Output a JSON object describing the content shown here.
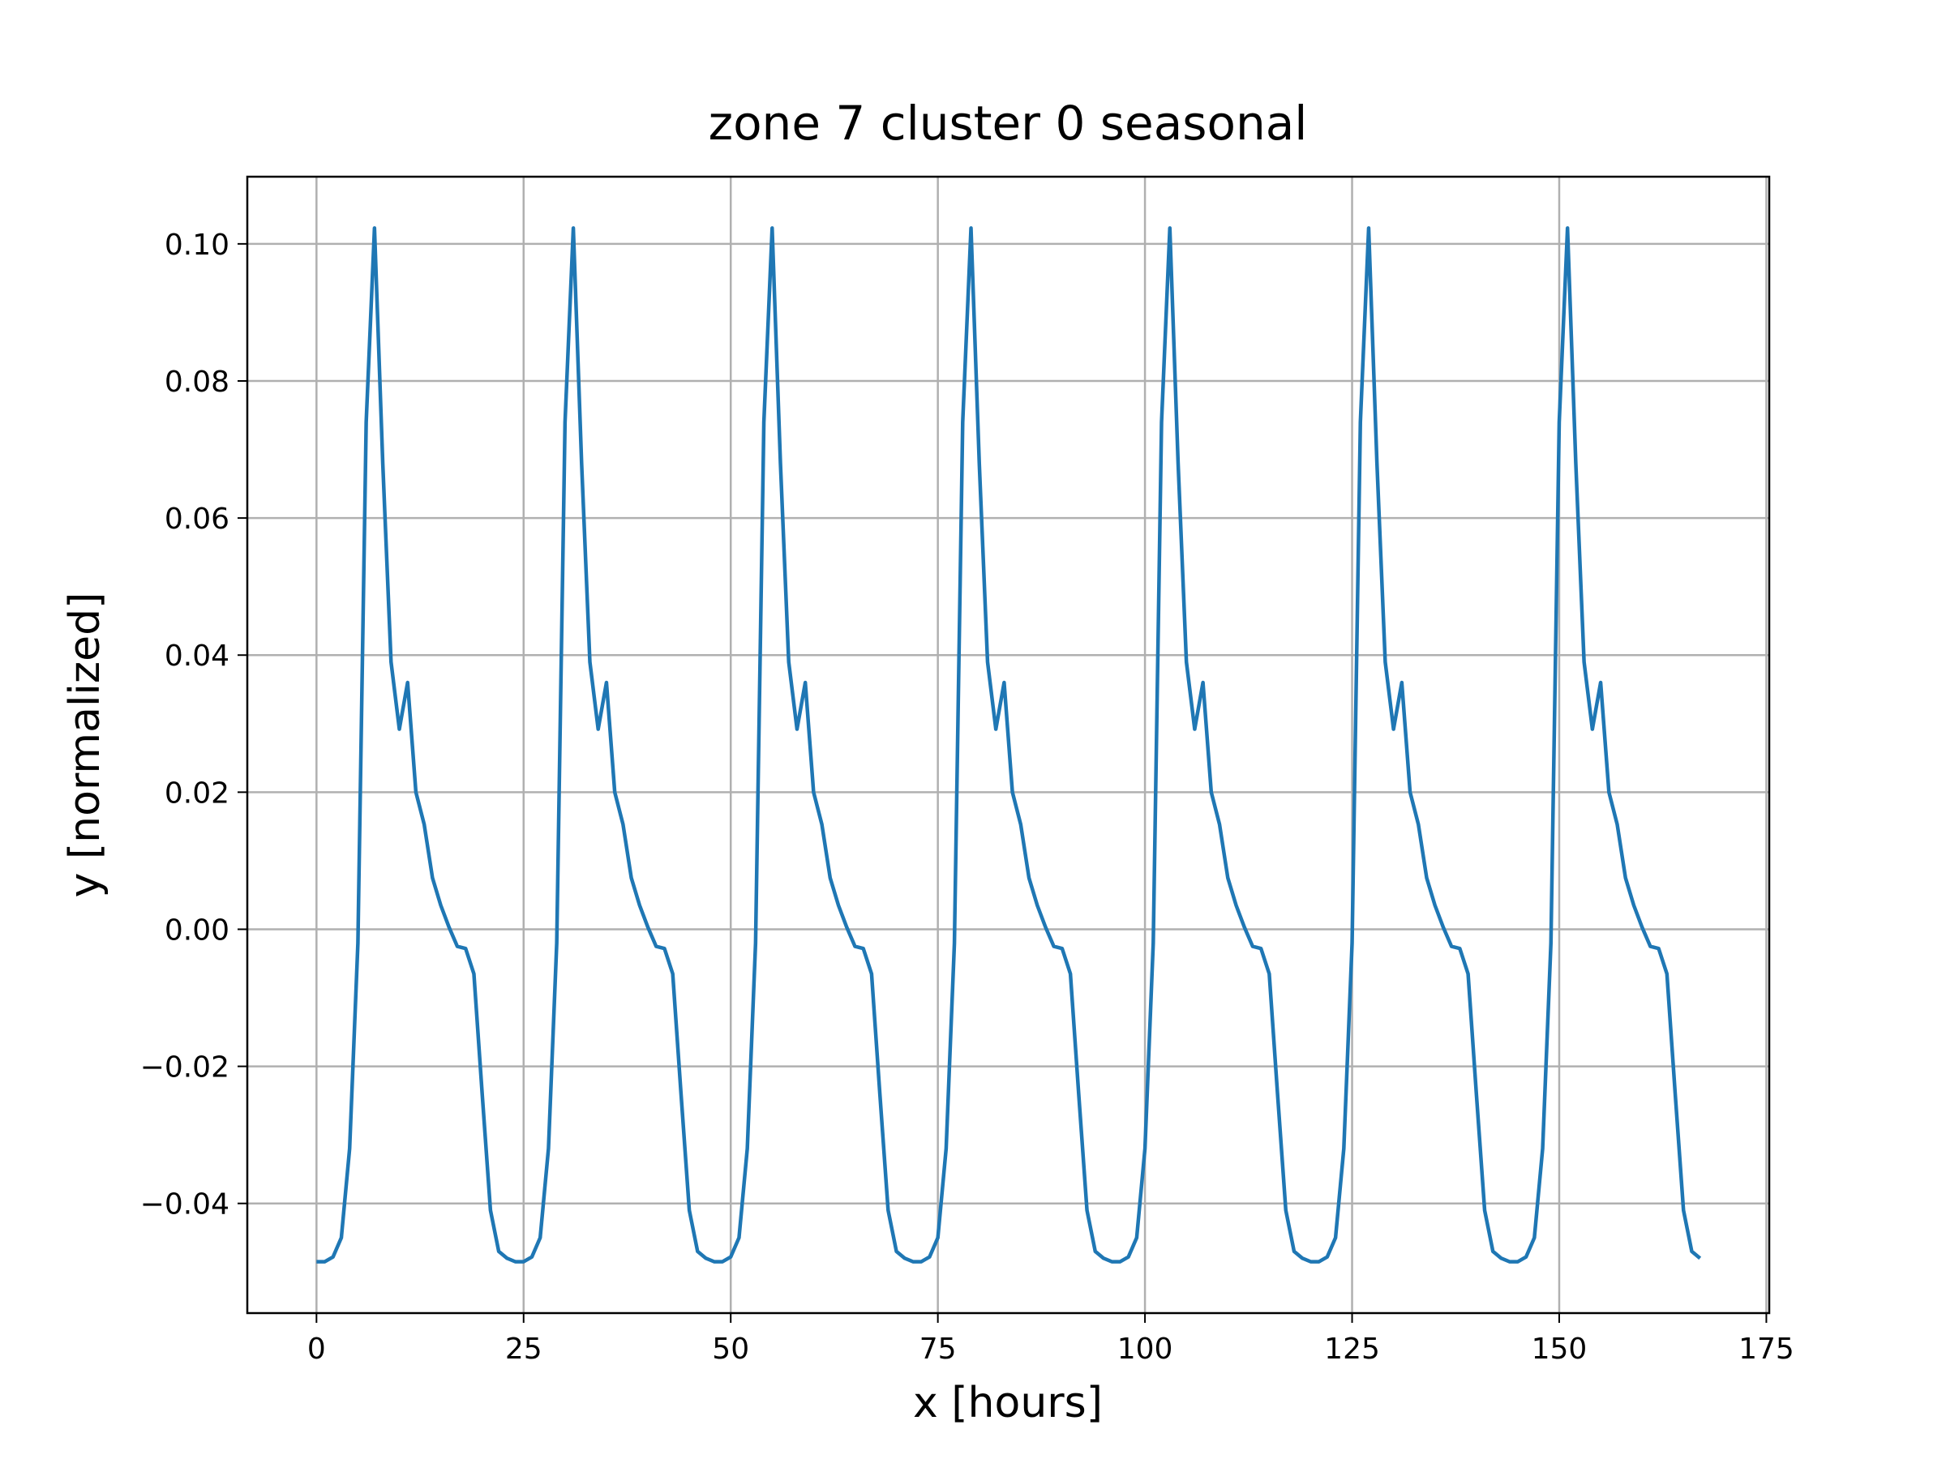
{
  "chart_data": {
    "type": "line",
    "title": "zone 7 cluster 0 seasonal",
    "xlabel": "x [hours]",
    "ylabel": "y [normalized]",
    "xlim": [
      -8.35,
      175.35
    ],
    "ylim": [
      -0.056,
      0.1098
    ],
    "xticks": [
      0,
      25,
      50,
      75,
      100,
      125,
      150,
      175
    ],
    "xtick_labels": [
      "0",
      "25",
      "50",
      "75",
      "100",
      "125",
      "150",
      "175"
    ],
    "yticks": [
      -0.04,
      -0.02,
      0.0,
      0.02,
      0.04,
      0.06,
      0.08,
      0.1
    ],
    "ytick_labels": [
      "−0.04",
      "−0.02",
      "0.00",
      "0.02",
      "0.04",
      "0.06",
      "0.08",
      "0.10"
    ],
    "grid": true,
    "series": [
      {
        "color": "#1f77b4",
        "period": 24,
        "x_start": 0,
        "x_end": 167,
        "period_values": [
          -0.0485,
          -0.0485,
          -0.0478,
          -0.045,
          -0.032,
          -0.002,
          0.074,
          0.1023,
          0.068,
          0.039,
          0.0292,
          0.036,
          0.02,
          0.0153,
          0.0075,
          0.0035,
          0.0003,
          -0.0025,
          -0.0028,
          -0.0065,
          -0.024,
          -0.041,
          -0.047,
          -0.048
        ]
      }
    ]
  }
}
